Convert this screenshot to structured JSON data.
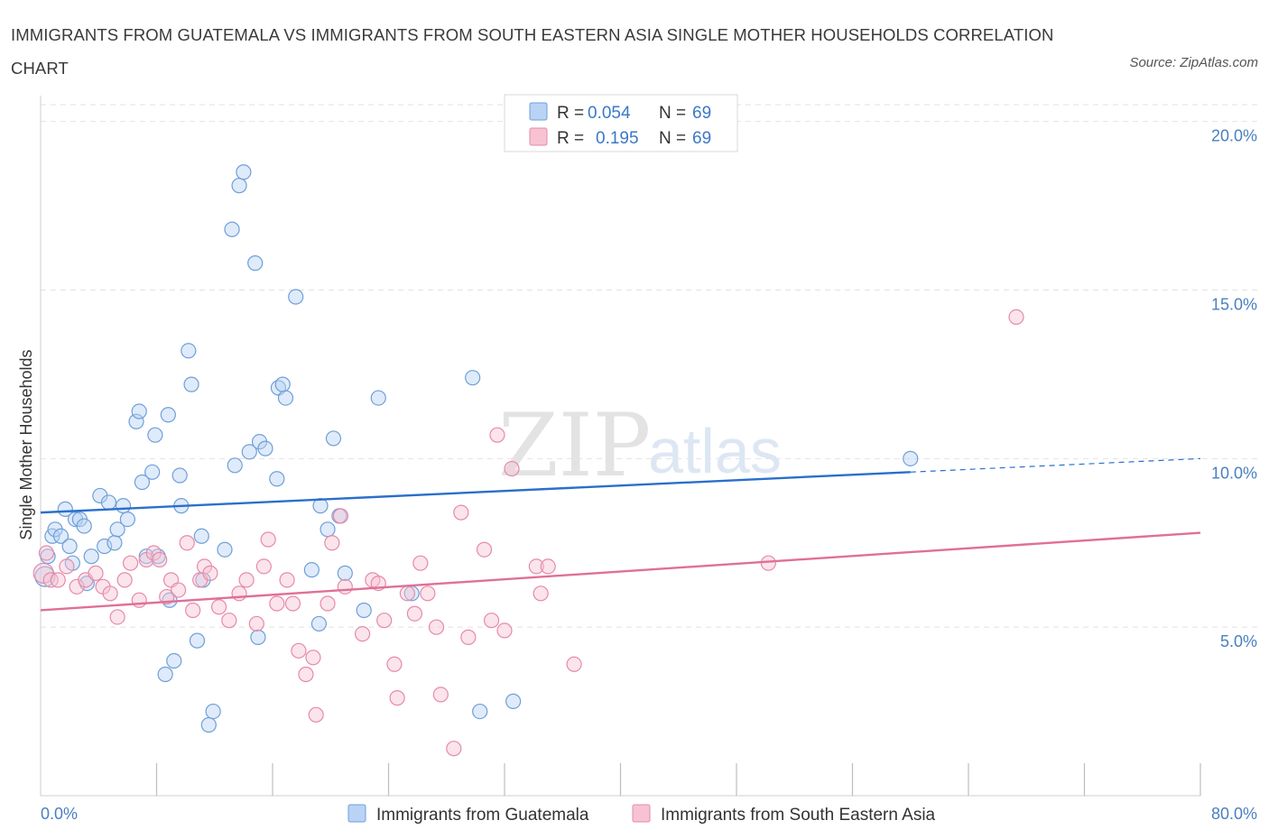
{
  "title": "IMMIGRANTS FROM GUATEMALA VS IMMIGRANTS FROM SOUTH EASTERN ASIA SINGLE MOTHER HOUSEHOLDS CORRELATION CHART",
  "source": "Source: ZipAtlas.com",
  "watermark": {
    "zip": "ZIP",
    "atlas": "atlas"
  },
  "legend_stats": [
    {
      "r_label": "R =",
      "r_value": "0.054",
      "n_label": "N =",
      "n_value": "69"
    },
    {
      "r_label": "R =",
      "r_value": "0.195",
      "n_label": "N =",
      "n_value": "69"
    }
  ],
  "colors": {
    "blue_fill": "#b9d3f5",
    "blue_stroke": "#6f9fd8",
    "blue_line": "#2a6fcc",
    "pink_fill": "#f7c3d3",
    "pink_stroke": "#e68aa8",
    "pink_line": "#e06f98",
    "grid": "#e2e2e2",
    "axis_text": "#4a7fc1"
  },
  "chart_data": {
    "type": "scatter",
    "title": "IMMIGRANTS FROM GUATEMALA VS IMMIGRANTS FROM SOUTH EASTERN ASIA SINGLE MOTHER HOUSEHOLDS CORRELATION CHART",
    "xlabel": "",
    "ylabel": "Single Mother Households",
    "xlim": [
      0,
      80
    ],
    "ylim": [
      0,
      20.5
    ],
    "x_tick_labels": [
      {
        "value": 0,
        "label": "0.0%"
      },
      {
        "value": 80,
        "label": "80.0%"
      }
    ],
    "x_minor_ticks": [
      8,
      16,
      24,
      32,
      40,
      48,
      56,
      64,
      72,
      80
    ],
    "y_ticks": [
      {
        "value": 5,
        "label": "5.0%"
      },
      {
        "value": 10,
        "label": "10.0%"
      },
      {
        "value": 15,
        "label": "15.0%"
      },
      {
        "value": 20,
        "label": "20.0%"
      }
    ],
    "grid": true,
    "legend_position": "bottom",
    "series": [
      {
        "name": "Immigrants from Guatemala",
        "color": "#6f9fd8",
        "trend": {
          "x0": 0,
          "y0": 8.4,
          "x1": 60,
          "y1": 9.6,
          "dash_to_x": 80,
          "dash_to_y": 10.0
        },
        "points": [
          [
            0.3,
            6.5
          ],
          [
            0.5,
            7.1
          ],
          [
            0.8,
            7.7
          ],
          [
            1.0,
            7.9
          ],
          [
            1.4,
            7.7
          ],
          [
            1.7,
            8.5
          ],
          [
            2.0,
            7.4
          ],
          [
            2.2,
            6.9
          ],
          [
            2.4,
            8.2
          ],
          [
            2.7,
            8.2
          ],
          [
            3.0,
            8.0
          ],
          [
            3.2,
            6.3
          ],
          [
            3.5,
            7.1
          ],
          [
            4.1,
            8.9
          ],
          [
            4.4,
            7.4
          ],
          [
            4.7,
            8.7
          ],
          [
            5.1,
            7.5
          ],
          [
            5.3,
            7.9
          ],
          [
            5.7,
            8.6
          ],
          [
            6.0,
            8.2
          ],
          [
            6.6,
            11.1
          ],
          [
            6.8,
            11.4
          ],
          [
            7.0,
            9.3
          ],
          [
            7.3,
            7.1
          ],
          [
            7.7,
            9.6
          ],
          [
            7.9,
            10.7
          ],
          [
            8.1,
            7.1
          ],
          [
            8.6,
            3.6
          ],
          [
            8.8,
            11.3
          ],
          [
            8.9,
            5.8
          ],
          [
            9.2,
            4.0
          ],
          [
            9.6,
            9.5
          ],
          [
            9.7,
            8.6
          ],
          [
            10.2,
            13.2
          ],
          [
            10.4,
            12.2
          ],
          [
            10.8,
            4.6
          ],
          [
            11.1,
            7.7
          ],
          [
            11.2,
            6.4
          ],
          [
            11.6,
            2.1
          ],
          [
            11.9,
            2.5
          ],
          [
            12.7,
            7.3
          ],
          [
            13.2,
            16.8
          ],
          [
            13.4,
            9.8
          ],
          [
            13.7,
            18.1
          ],
          [
            14.0,
            18.5
          ],
          [
            14.4,
            10.2
          ],
          [
            14.8,
            15.8
          ],
          [
            15.0,
            4.7
          ],
          [
            15.1,
            10.5
          ],
          [
            15.5,
            10.3
          ],
          [
            16.3,
            9.4
          ],
          [
            16.4,
            12.1
          ],
          [
            16.7,
            12.2
          ],
          [
            16.9,
            11.8
          ],
          [
            17.6,
            14.8
          ],
          [
            18.7,
            6.7
          ],
          [
            19.2,
            5.1
          ],
          [
            19.3,
            8.6
          ],
          [
            19.8,
            7.9
          ],
          [
            20.2,
            10.6
          ],
          [
            20.6,
            8.3
          ],
          [
            21.0,
            6.6
          ],
          [
            22.3,
            5.5
          ],
          [
            23.3,
            11.8
          ],
          [
            25.6,
            6.0
          ],
          [
            29.8,
            12.4
          ],
          [
            30.3,
            2.5
          ],
          [
            32.6,
            2.8
          ],
          [
            60.0,
            10.0
          ]
        ]
      },
      {
        "name": "Immigrants from South Eastern Asia",
        "color": "#e68aa8",
        "trend": {
          "x0": 0,
          "y0": 5.5,
          "x1": 80,
          "y1": 7.8
        },
        "points": [
          [
            0.2,
            6.6
          ],
          [
            0.4,
            7.2
          ],
          [
            0.7,
            6.4
          ],
          [
            1.2,
            6.4
          ],
          [
            1.8,
            6.8
          ],
          [
            2.5,
            6.2
          ],
          [
            3.1,
            6.4
          ],
          [
            3.8,
            6.6
          ],
          [
            4.3,
            6.2
          ],
          [
            4.8,
            6.0
          ],
          [
            5.3,
            5.3
          ],
          [
            5.8,
            6.4
          ],
          [
            6.2,
            6.9
          ],
          [
            6.8,
            5.8
          ],
          [
            7.3,
            7.0
          ],
          [
            7.8,
            7.2
          ],
          [
            8.2,
            7.0
          ],
          [
            8.7,
            5.9
          ],
          [
            9.0,
            6.4
          ],
          [
            9.5,
            6.1
          ],
          [
            10.1,
            7.5
          ],
          [
            10.5,
            5.5
          ],
          [
            11.0,
            6.4
          ],
          [
            11.3,
            6.8
          ],
          [
            11.7,
            6.6
          ],
          [
            12.3,
            5.6
          ],
          [
            13.0,
            5.2
          ],
          [
            13.7,
            6.0
          ],
          [
            14.2,
            6.4
          ],
          [
            14.9,
            5.1
          ],
          [
            15.4,
            6.8
          ],
          [
            15.7,
            7.6
          ],
          [
            16.3,
            5.7
          ],
          [
            17.0,
            6.4
          ],
          [
            17.4,
            5.7
          ],
          [
            17.8,
            4.3
          ],
          [
            18.3,
            3.6
          ],
          [
            18.8,
            4.1
          ],
          [
            19.0,
            2.4
          ],
          [
            19.8,
            5.7
          ],
          [
            20.1,
            7.5
          ],
          [
            20.7,
            8.3
          ],
          [
            21.0,
            6.2
          ],
          [
            22.2,
            4.8
          ],
          [
            22.9,
            6.4
          ],
          [
            23.3,
            6.3
          ],
          [
            23.7,
            5.2
          ],
          [
            24.4,
            3.9
          ],
          [
            24.6,
            2.9
          ],
          [
            25.3,
            6.0
          ],
          [
            25.8,
            5.4
          ],
          [
            26.2,
            6.9
          ],
          [
            26.7,
            6.0
          ],
          [
            27.3,
            5.0
          ],
          [
            27.6,
            3.0
          ],
          [
            28.5,
            1.4
          ],
          [
            29.0,
            8.4
          ],
          [
            29.5,
            4.7
          ],
          [
            30.6,
            7.3
          ],
          [
            31.1,
            5.2
          ],
          [
            31.5,
            10.7
          ],
          [
            32.0,
            4.9
          ],
          [
            32.5,
            9.7
          ],
          [
            34.2,
            6.8
          ],
          [
            34.5,
            6.0
          ],
          [
            35.0,
            6.8
          ],
          [
            36.8,
            3.9
          ],
          [
            50.2,
            6.9
          ],
          [
            67.3,
            14.2
          ]
        ]
      }
    ]
  }
}
